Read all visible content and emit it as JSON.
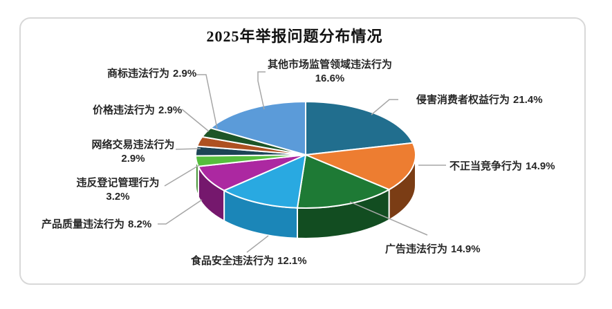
{
  "page": {
    "background": "#FFFFFF",
    "frame_border_color": "#D8D8D8"
  },
  "chart_data": {
    "type": "pie",
    "style": "3d",
    "title": "2025年举报问题分布情况",
    "unit": "%",
    "start_angle_deg": 0,
    "direction": "clockwise",
    "legend_position": "none",
    "categories": [
      "侵害消费者权益行为",
      "不正当竞争行为",
      "广告违法行为",
      "食品安全违法行为",
      "产品质量违法行为",
      "违反登记管理行为",
      "网络交易违法行为",
      "价格违法行为",
      "商标违法行为",
      "其他市场监管领域违法行为"
    ],
    "values": [
      21.4,
      14.9,
      14.9,
      12.1,
      8.2,
      3.2,
      2.9,
      2.9,
      2.9,
      16.6
    ],
    "slices": [
      {
        "label": "侵害消费者权益行为",
        "value": 21.4,
        "value_text": "21.4%",
        "color": "#216E8E",
        "side_color": "#164258"
      },
      {
        "label": "不正当竞争行为",
        "value": 14.9,
        "value_text": "14.9%",
        "color": "#ED7D31",
        "side_color": "#7B3D15"
      },
      {
        "label": "广告违法行为",
        "value": 14.9,
        "value_text": "14.9%",
        "color": "#1E7A35",
        "side_color": "#124D21"
      },
      {
        "label": "食品安全违法行为",
        "value": 12.1,
        "value_text": "12.1%",
        "color": "#29A9E1",
        "side_color": "#1B86B8"
      },
      {
        "label": "产品质量违法行为",
        "value": 8.2,
        "value_text": "8.2%",
        "color": "#AC28A1",
        "side_color": "#75186D"
      },
      {
        "label": "违反登记管理行为",
        "value": 3.2,
        "value_text": "3.2%",
        "color": "#56BE3E",
        "side_color": "#378C26"
      },
      {
        "label": "网络交易违法行为",
        "value": 2.9,
        "value_text": "2.9%",
        "color": "#1C4456",
        "side_color": "#102B38"
      },
      {
        "label": "价格违法行为",
        "value": 2.9,
        "value_text": "2.9%",
        "color": "#AE5121",
        "side_color": "#713413"
      },
      {
        "label": "商标违法行为",
        "value": 2.9,
        "value_text": "2.9%",
        "color": "#1D5527",
        "side_color": "#123519"
      },
      {
        "label": "其他市场监管领域违法行为",
        "value": 16.6,
        "value_text": "16.6%",
        "color": "#5B9BD9",
        "side_color": "#3C6F9E"
      }
    ],
    "leader_line_color": "#A6A6A6",
    "slice_border_color": "#FFFFFF"
  }
}
